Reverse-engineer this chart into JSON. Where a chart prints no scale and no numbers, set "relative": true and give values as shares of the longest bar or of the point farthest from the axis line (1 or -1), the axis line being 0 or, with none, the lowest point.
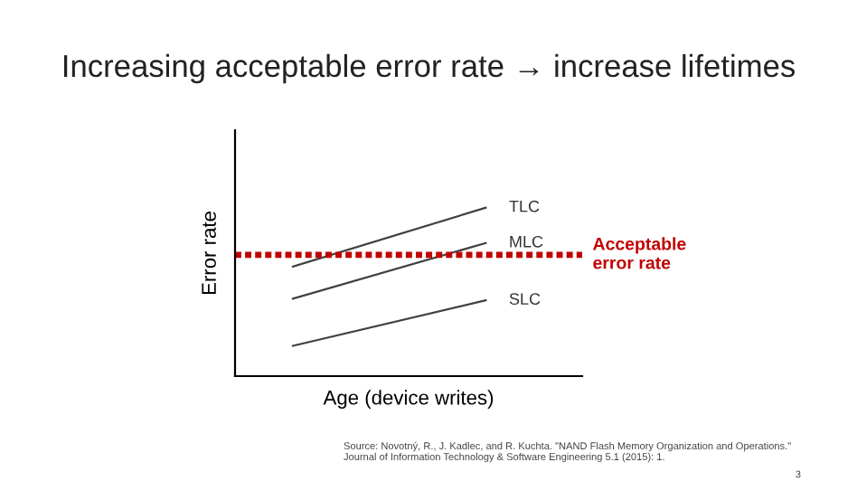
{
  "chart_data": {
    "type": "line",
    "title": "Increasing acceptable error rate → increase lifetimes",
    "xlabel": "Age (device writes)",
    "ylabel": "Error rate",
    "relative": true,
    "categories": [
      null,
      null
    ],
    "series": [
      {
        "name": "TLC",
        "color": "#404040",
        "values": [
          0.65,
          1
        ]
      },
      {
        "name": "MLC",
        "color": "#404040",
        "values": [
          0.46,
          0.79
        ]
      },
      {
        "name": "SLC",
        "color": "#404040",
        "values": [
          0.18,
          0.45
        ]
      }
    ],
    "ref_lines": [
      {
        "axis": "y",
        "value": 0.72,
        "label": "Acceptable\nerror rate",
        "color": "#c00000",
        "line_style": "dotted"
      }
    ],
    "grid": false,
    "legend": false,
    "annotations": [
      "Source: Novotný, R., J. Kadlec, and R. Kuchta. \"NAND Flash Memory Organization and Operations.\"\nJournal of Information Technology & Software Engineering 5.1 (2015): 1.",
      "3"
    ]
  }
}
